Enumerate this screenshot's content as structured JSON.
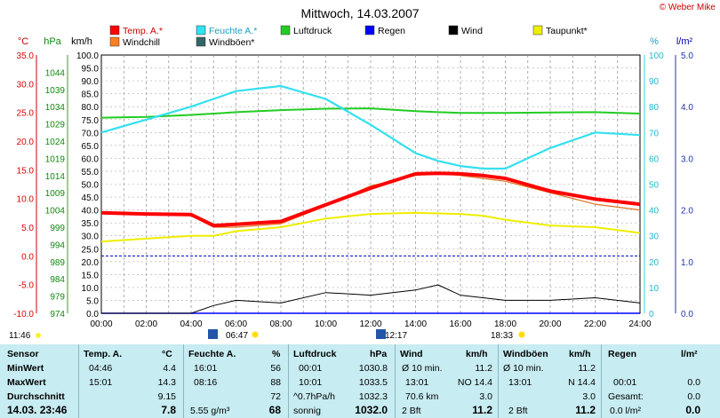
{
  "header": {
    "title": "Mittwoch, 14.03.2007",
    "credit": "© Weber Mike"
  },
  "legend": [
    {
      "name": "Temp. A.*",
      "color": "#ff0000"
    },
    {
      "name": "Feuchte A.*",
      "color": "#33e0f0"
    },
    {
      "name": "Luftdruck",
      "color": "#22cc22"
    },
    {
      "name": "Regen",
      "color": "#0000ff"
    },
    {
      "name": "Wind",
      "color": "#000000"
    },
    {
      "name": "Taupunkt*",
      "color": "#eeee00"
    },
    {
      "name": "Windchill",
      "color": "#ff7f20"
    },
    {
      "name": "Windböen*",
      "color": "#336666"
    }
  ],
  "axes": {
    "temp_unit": "°C",
    "press_unit": "hPa",
    "wind_unit": "km/h",
    "hum_unit": "%",
    "rain_unit": "l/m²",
    "temp_ticks": [
      "35.0",
      "30.0",
      "25.0",
      "20.0",
      "15.0",
      "10.0",
      "5.0",
      "0.0",
      "-5.0",
      "-10.0"
    ],
    "press_ticks": [
      "1044",
      "1039",
      "1034",
      "1029",
      "1024",
      "1019",
      "1014",
      "1009",
      "1004",
      "999",
      "994",
      "989",
      "984",
      "979",
      "974"
    ],
    "wind_ticks": [
      "100.0",
      "95.0",
      "90.0",
      "85.0",
      "80.0",
      "75.0",
      "70.0",
      "65.0",
      "60.0",
      "55.0",
      "50.0",
      "45.0",
      "40.0",
      "35.0",
      "30.0",
      "25.0",
      "20.0",
      "15.0",
      "10.0",
      "5.0",
      "0.0"
    ],
    "hum_ticks": [
      "100",
      "90",
      "80",
      "70",
      "60",
      "50",
      "40",
      "30",
      "20",
      "10",
      "0"
    ],
    "rain_ticks": [
      "5.0",
      "4.0",
      "3.0",
      "2.0",
      "1.0",
      "0.0"
    ],
    "time_ticks": [
      "00:00",
      "02:00",
      "04:00",
      "06:00",
      "08:00",
      "10:00",
      "12:00",
      "14:00",
      "16:00",
      "18:00",
      "20:00",
      "22:00",
      "24:00"
    ]
  },
  "sun": {
    "moonset": "11:46",
    "sunrise": "06:47",
    "noon": "12:17",
    "sunset": "18:33"
  },
  "chart_data": {
    "type": "line",
    "title": "Mittwoch, 14.03.2007",
    "x_hours": [
      0,
      2,
      4,
      5,
      6,
      8,
      10,
      12,
      14,
      15,
      16,
      17,
      18,
      20,
      22,
      24
    ],
    "series": [
      {
        "name": "Temp. A.*",
        "unit": "°C",
        "values": [
          7.5,
          7.3,
          7.2,
          5.3,
          5.5,
          6.0,
          8.9,
          11.8,
          14.3,
          14.4,
          14.3,
          14.0,
          13.5,
          11.3,
          9.9,
          9.0
        ]
      },
      {
        "name": "Windchill",
        "unit": "°C",
        "values": [
          7.5,
          7.3,
          7.0,
          5.0,
          5.0,
          5.6,
          8.7,
          12.2,
          14.0,
          14.5,
          14.0,
          13.5,
          13.0,
          11.0,
          9.0,
          8.0
        ]
      },
      {
        "name": "Feuchte A.*",
        "unit": "%",
        "values": [
          70,
          75,
          80,
          83,
          86,
          88,
          83,
          73,
          62,
          59,
          57,
          56,
          56,
          64,
          70,
          69
        ]
      },
      {
        "name": "Luftdruck",
        "unit": "hPa",
        "values": [
          1030.8,
          1031.0,
          1031.6,
          1032.0,
          1032.4,
          1033.0,
          1033.4,
          1033.5,
          1032.7,
          1032.4,
          1032.2,
          1032.2,
          1032.2,
          1032.3,
          1032.4,
          1032.0
        ]
      },
      {
        "name": "Taupunkt*",
        "unit": "°C",
        "values": [
          2.5,
          3.0,
          3.5,
          3.5,
          4.3,
          5.0,
          6.5,
          7.3,
          7.5,
          7.4,
          7.3,
          7.0,
          6.3,
          5.3,
          5.0,
          4.0
        ]
      },
      {
        "name": "Regen",
        "unit": "l/m²",
        "values": [
          0,
          0,
          0,
          0,
          0,
          0,
          0,
          0,
          0,
          0,
          0,
          0,
          0,
          0,
          0,
          0
        ]
      },
      {
        "name": "Wind",
        "unit": "km/h",
        "values": [
          0,
          0,
          0,
          3,
          5,
          4,
          8,
          7,
          9,
          11,
          7,
          6,
          5,
          5,
          6,
          4
        ]
      }
    ],
    "ylim_temp": [
      -10,
      35
    ],
    "ylim_press": [
      974,
      1049
    ],
    "ylim_wind": [
      0,
      100
    ],
    "ylim_hum": [
      0,
      100
    ],
    "ylim_rain": [
      0,
      5
    ],
    "grid": true
  },
  "stats": {
    "rows": [
      {
        "label": "Sensor"
      },
      {
        "label": "MinWert"
      },
      {
        "label": "MaxWert"
      },
      {
        "label": "Durchschnitt"
      },
      {
        "label": "14.03. 23:46"
      }
    ],
    "temp": {
      "head": "Temp. A.",
      "unit": "°C",
      "min_t": "04:46",
      "min_v": "4.4",
      "max_t": "15:01",
      "max_v": "14.3",
      "avg": "9.15",
      "cur": "7.8"
    },
    "hum": {
      "head": "Feuchte A.",
      "unit": "%",
      "min_t": "16:01",
      "min_v": "56",
      "max_t": "08:16",
      "max_v": "88",
      "avg": "72",
      "cur_abs": "5.55 g/m³",
      "cur": "68"
    },
    "press": {
      "head": "Luftdruck",
      "unit": "hPa",
      "min_t": "00:01",
      "min_v": "1030.8",
      "max_t": "10:01",
      "max_v": "1033.5",
      "trend": "^0.7hPa/h",
      "avg": "1032.3",
      "state": "sonnig",
      "cur": "1032.0"
    },
    "wind": {
      "head": "Wind",
      "unit": "km/h",
      "avg_label": "Ø 10 min.",
      "avg_v": "11.2",
      "max_t": "13:01",
      "max_dir": "NO 14.4",
      "dist": "70.6 km",
      "dist_v": "3.0",
      "bft": "2 Bft",
      "cur": "11.2"
    },
    "gust": {
      "head": "Windböen",
      "unit": "km/h",
      "avg_label": "Ø 10 min.",
      "avg_v": "11.2",
      "max_t": "13:01",
      "max_dir": "N 14.4",
      "avg2": "3.0",
      "bft": "2 Bft",
      "cur": "11.2"
    },
    "rain": {
      "head": "Regen",
      "unit": "l/m²",
      "max_t": "00:01",
      "max_v": "0.0",
      "total_label": "Gesamt:",
      "total_v": "0.0",
      "cur_label": "0.0 l/m²",
      "cur": "0.0"
    }
  }
}
